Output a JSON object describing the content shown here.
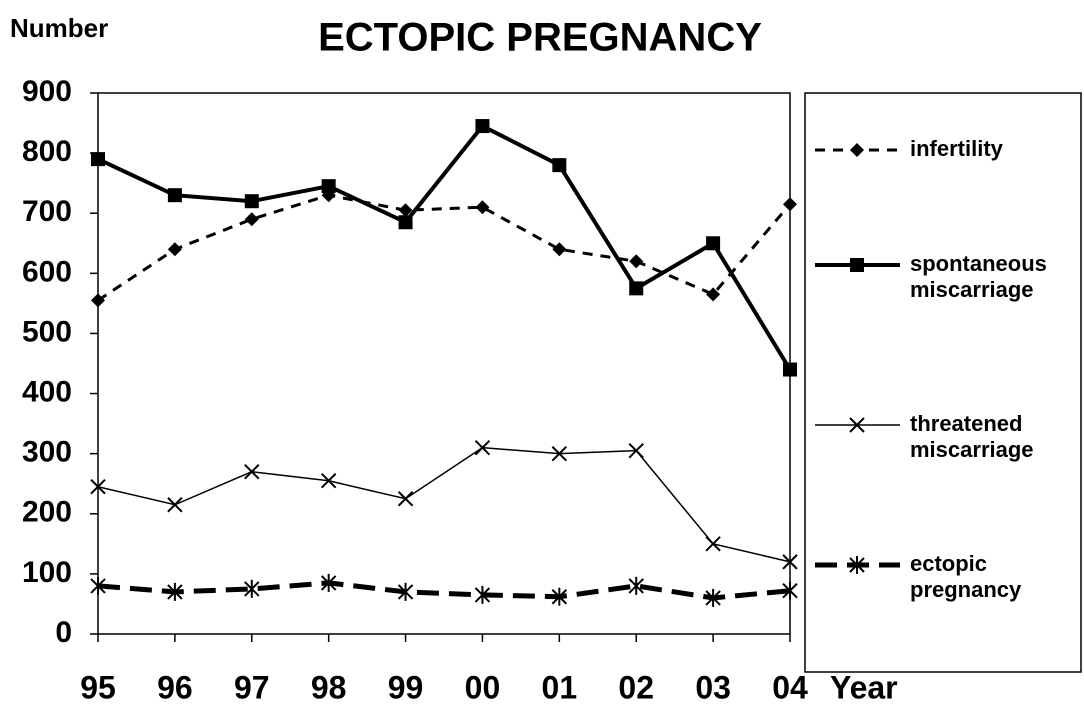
{
  "chart_data": {
    "type": "line",
    "title": "ECTOPIC PREGNANCY",
    "y_label": "Number",
    "x_label": "Year",
    "categories": [
      "95",
      "96",
      "97",
      "98",
      "99",
      "00",
      "01",
      "02",
      "03",
      "04"
    ],
    "series": [
      {
        "name": "infertility",
        "color": "#000000",
        "line_style": "dashed",
        "marker": "diamond",
        "values": [
          555,
          640,
          690,
          730,
          705,
          710,
          640,
          620,
          565,
          715
        ]
      },
      {
        "name": "spontaneous miscarriage",
        "color": "#000000",
        "line_style": "solid-thick",
        "marker": "square",
        "values": [
          790,
          730,
          720,
          745,
          685,
          845,
          780,
          575,
          650,
          440
        ]
      },
      {
        "name": "threatened miscarriage",
        "color": "#000000",
        "line_style": "solid-thin",
        "marker": "x",
        "values": [
          245,
          215,
          270,
          255,
          225,
          310,
          300,
          305,
          150,
          120
        ]
      },
      {
        "name": "ectopic pregnancy",
        "color": "#000000",
        "line_style": "dashed-thick",
        "marker": "asterisk",
        "values": [
          80,
          70,
          75,
          85,
          70,
          65,
          62,
          80,
          60,
          72
        ]
      }
    ],
    "ylim": [
      0,
      900
    ],
    "yticks": [
      0,
      100,
      200,
      300,
      400,
      500,
      600,
      700,
      800,
      900
    ],
    "legend": "right"
  }
}
